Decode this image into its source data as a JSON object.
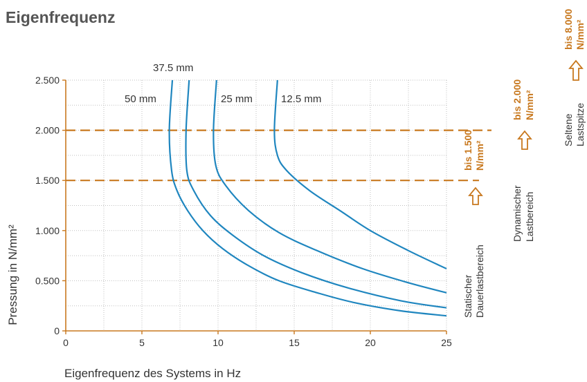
{
  "page": {
    "title": "Eigenfrequenz"
  },
  "colors": {
    "curve": "#1f86bf",
    "threshold": "#c8781e",
    "accent_text": "#c8781e",
    "axis": "#c8781e",
    "grid": "#bfbfbf",
    "text": "#333333"
  },
  "chart_data": {
    "type": "line",
    "title": "",
    "xlabel": "Eigenfrequenz des Systems in Hz",
    "ylabel": "Pressung in N/mm²",
    "xlim": [
      0,
      25
    ],
    "ylim": [
      0,
      2.5
    ],
    "x_ticks": [
      "0",
      "5",
      "10",
      "15",
      "20",
      "25"
    ],
    "y_ticks": [
      "0",
      "0.500",
      "1.000",
      "1.500",
      "2.000",
      "2.500"
    ],
    "grid": true,
    "series": [
      {
        "name": "50 mm",
        "points": [
          [
            7.0,
            2.5
          ],
          [
            6.8,
            2.0
          ],
          [
            6.95,
            1.6
          ],
          [
            7.3,
            1.4
          ],
          [
            8.0,
            1.2
          ],
          [
            9.0,
            1.0
          ],
          [
            10.3,
            0.82
          ],
          [
            12.0,
            0.65
          ],
          [
            14.0,
            0.5
          ],
          [
            16.5,
            0.38
          ],
          [
            19.0,
            0.28
          ],
          [
            22.0,
            0.2
          ],
          [
            25.0,
            0.15
          ]
        ]
      },
      {
        "name": "37.5 mm",
        "points": [
          [
            8.1,
            2.5
          ],
          [
            7.9,
            2.0
          ],
          [
            7.95,
            1.6
          ],
          [
            8.4,
            1.4
          ],
          [
            9.5,
            1.15
          ],
          [
            11.0,
            0.95
          ],
          [
            13.0,
            0.75
          ],
          [
            15.5,
            0.58
          ],
          [
            18.5,
            0.43
          ],
          [
            22.0,
            0.3
          ],
          [
            25.0,
            0.23
          ]
        ]
      },
      {
        "name": "25 mm",
        "points": [
          [
            9.9,
            2.5
          ],
          [
            9.7,
            2.0
          ],
          [
            9.85,
            1.65
          ],
          [
            10.5,
            1.45
          ],
          [
            12.0,
            1.2
          ],
          [
            14.0,
            0.98
          ],
          [
            16.5,
            0.8
          ],
          [
            19.5,
            0.62
          ],
          [
            22.5,
            0.48
          ],
          [
            25.0,
            0.38
          ]
        ]
      },
      {
        "name": "12.5 mm",
        "points": [
          [
            13.9,
            2.5
          ],
          [
            13.7,
            2.0
          ],
          [
            13.9,
            1.75
          ],
          [
            14.5,
            1.6
          ],
          [
            16.0,
            1.4
          ],
          [
            18.0,
            1.2
          ],
          [
            20.0,
            1.0
          ],
          [
            22.5,
            0.8
          ],
          [
            25.0,
            0.62
          ]
        ]
      }
    ],
    "curve_labels": [
      "50 mm",
      "37.5 mm",
      "25 mm",
      "12.5 mm"
    ],
    "thresholds": [
      1.5,
      2.0
    ]
  },
  "load_ranges": [
    {
      "value": "bis 1.500",
      "unit": "N/mm²",
      "label_line1": "Statischer",
      "label_line2": "Dauerlastbereich"
    },
    {
      "value": "bis 2.000",
      "unit": "N/mm²",
      "label_line1": "Dynamischer",
      "label_line2": "Lastbereich"
    },
    {
      "value": "bis 8.000",
      "unit": "N/mm²",
      "label_line1": "Seltene",
      "label_line2": "Lastspitze"
    }
  ]
}
